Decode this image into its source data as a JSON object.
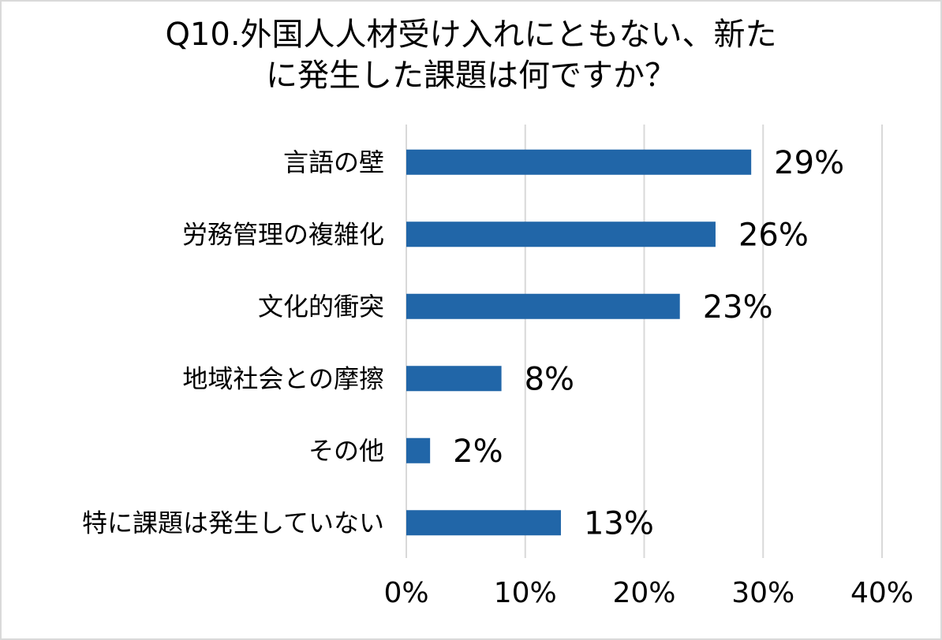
{
  "chart_data": {
    "type": "bar",
    "orientation": "horizontal",
    "title": "Q10.外国人人材受け入れにともない、新た\nに発生した課題は何ですか？",
    "categories": [
      "言語の壁",
      "労務管理の複雑化",
      "文化的衝突",
      "地域社会との摩擦",
      "その他",
      "特に課題は発生していない"
    ],
    "values": [
      29,
      26,
      23,
      8,
      2,
      13
    ],
    "value_labels": [
      "29%",
      "26%",
      "23%",
      "8%",
      "2%",
      "13%"
    ],
    "xlim": [
      0,
      40
    ],
    "xticks": [
      0,
      10,
      20,
      30,
      40
    ],
    "xtick_labels": [
      "0%",
      "10%",
      "20%",
      "30%",
      "40%"
    ],
    "grid": "vertical",
    "legend": "none",
    "bar_color": "#2166a8",
    "grid_color": "#d9d9d9"
  }
}
